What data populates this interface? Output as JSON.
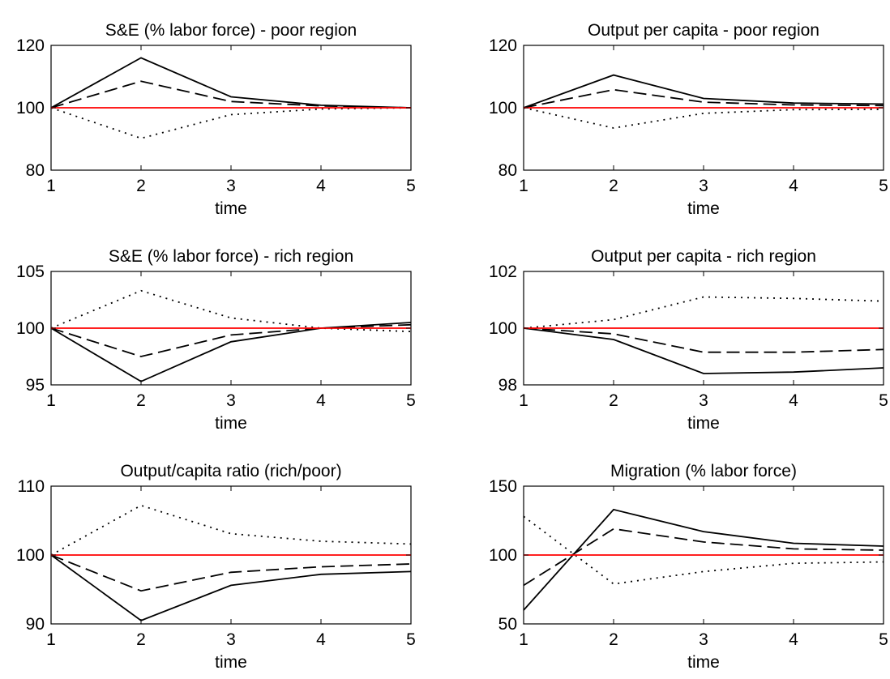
{
  "chart_data": [
    {
      "type": "line",
      "title": "S&E (% labor force) - poor region",
      "xlabel": "time",
      "ylabel": "",
      "x": [
        1,
        2,
        3,
        4,
        5
      ],
      "xlim": [
        1,
        5
      ],
      "ylim": [
        80,
        120
      ],
      "xticks": [
        "1",
        "2",
        "3",
        "4",
        "5"
      ],
      "yticks": [
        "80",
        "100",
        "120"
      ],
      "grid": false,
      "series": [
        {
          "style": "solid",
          "color": "#000000",
          "values": [
            100,
            116,
            103.5,
            100.8,
            100
          ]
        },
        {
          "style": "dashed",
          "color": "#000000",
          "values": [
            100,
            108.5,
            102,
            100.6,
            100
          ]
        },
        {
          "style": "dotted",
          "color": "#000000",
          "values": [
            100,
            90.2,
            97.8,
            99.6,
            100
          ]
        },
        {
          "style": "solid",
          "color": "#ff0000",
          "values": [
            100,
            100,
            100,
            100,
            100
          ]
        }
      ]
    },
    {
      "type": "line",
      "title": "Output per capita - poor region",
      "xlabel": "time",
      "ylabel": "",
      "x": [
        1,
        2,
        3,
        4,
        5
      ],
      "xlim": [
        1,
        5
      ],
      "ylim": [
        80,
        120
      ],
      "xticks": [
        "1",
        "2",
        "3",
        "4",
        "5"
      ],
      "yticks": [
        "80",
        "100",
        "120"
      ],
      "grid": false,
      "series": [
        {
          "style": "solid",
          "color": "#000000",
          "values": [
            100,
            110.5,
            103,
            101.5,
            101.2
          ]
        },
        {
          "style": "dashed",
          "color": "#000000",
          "values": [
            100,
            105.8,
            101.8,
            100.9,
            100.7
          ]
        },
        {
          "style": "dotted",
          "color": "#000000",
          "values": [
            100,
            93.5,
            98.2,
            99.4,
            99.5
          ]
        },
        {
          "style": "solid",
          "color": "#ff0000",
          "values": [
            100,
            100,
            100,
            100,
            100
          ]
        }
      ]
    },
    {
      "type": "line",
      "title": "S&E (% labor force) - rich region",
      "xlabel": "time",
      "ylabel": "",
      "x": [
        1,
        2,
        3,
        4,
        5
      ],
      "xlim": [
        1,
        5
      ],
      "ylim": [
        95,
        105
      ],
      "xticks": [
        "1",
        "2",
        "3",
        "4",
        "5"
      ],
      "yticks": [
        "95",
        "100",
        "105"
      ],
      "grid": false,
      "series": [
        {
          "style": "solid",
          "color": "#000000",
          "values": [
            100,
            95.3,
            98.8,
            100,
            100.5
          ]
        },
        {
          "style": "dashed",
          "color": "#000000",
          "values": [
            100,
            97.5,
            99.4,
            100,
            100.3
          ]
        },
        {
          "style": "dotted",
          "color": "#000000",
          "values": [
            100,
            103.3,
            100.9,
            100,
            99.7
          ]
        },
        {
          "style": "solid",
          "color": "#ff0000",
          "values": [
            100,
            100,
            100,
            100,
            100
          ]
        }
      ]
    },
    {
      "type": "line",
      "title": "Output per capita - rich region",
      "xlabel": "time",
      "ylabel": "",
      "x": [
        1,
        2,
        3,
        4,
        5
      ],
      "xlim": [
        1,
        5
      ],
      "ylim": [
        98,
        102
      ],
      "xticks": [
        "1",
        "2",
        "3",
        "4",
        "5"
      ],
      "yticks": [
        "98",
        "100",
        "102"
      ],
      "grid": false,
      "series": [
        {
          "style": "solid",
          "color": "#000000",
          "values": [
            100,
            99.6,
            98.4,
            98.45,
            98.6
          ]
        },
        {
          "style": "dashed",
          "color": "#000000",
          "values": [
            100,
            99.8,
            99.15,
            99.15,
            99.25
          ]
        },
        {
          "style": "dotted",
          "color": "#000000",
          "values": [
            100,
            100.3,
            101.1,
            101.05,
            100.95
          ]
        },
        {
          "style": "solid",
          "color": "#ff0000",
          "values": [
            100,
            100,
            100,
            100,
            100
          ]
        }
      ]
    },
    {
      "type": "line",
      "title": "Output/capita ratio (rich/poor)",
      "xlabel": "time",
      "ylabel": "",
      "x": [
        1,
        2,
        3,
        4,
        5
      ],
      "xlim": [
        1,
        5
      ],
      "ylim": [
        90,
        110
      ],
      "xticks": [
        "1",
        "2",
        "3",
        "4",
        "5"
      ],
      "yticks": [
        "90",
        "100",
        "110"
      ],
      "grid": false,
      "series": [
        {
          "style": "solid",
          "color": "#000000",
          "values": [
            100,
            90.5,
            95.6,
            97.2,
            97.6
          ]
        },
        {
          "style": "dashed",
          "color": "#000000",
          "values": [
            100,
            94.8,
            97.5,
            98.3,
            98.7
          ]
        },
        {
          "style": "dotted",
          "color": "#000000",
          "values": [
            100,
            107.2,
            103.1,
            102,
            101.6
          ]
        },
        {
          "style": "solid",
          "color": "#ff0000",
          "values": [
            100,
            100,
            100,
            100,
            100
          ]
        }
      ]
    },
    {
      "type": "line",
      "title": "Migration (% labor force)",
      "xlabel": "time",
      "ylabel": "",
      "x": [
        1,
        2,
        3,
        4,
        5
      ],
      "xlim": [
        1,
        5
      ],
      "ylim": [
        50,
        150
      ],
      "xticks": [
        "1",
        "2",
        "3",
        "4",
        "5"
      ],
      "yticks": [
        "50",
        "100",
        "150"
      ],
      "grid": false,
      "series": [
        {
          "style": "solid",
          "color": "#000000",
          "values": [
            60,
            133,
            117,
            108.5,
            106.5
          ]
        },
        {
          "style": "dashed",
          "color": "#000000",
          "values": [
            78,
            119,
            109.5,
            104.5,
            103.5
          ]
        },
        {
          "style": "dotted",
          "color": "#000000",
          "values": [
            128,
            79,
            88,
            94,
            95
          ]
        },
        {
          "style": "solid",
          "color": "#ff0000",
          "values": [
            100,
            100,
            100,
            100,
            100
          ]
        }
      ]
    }
  ]
}
